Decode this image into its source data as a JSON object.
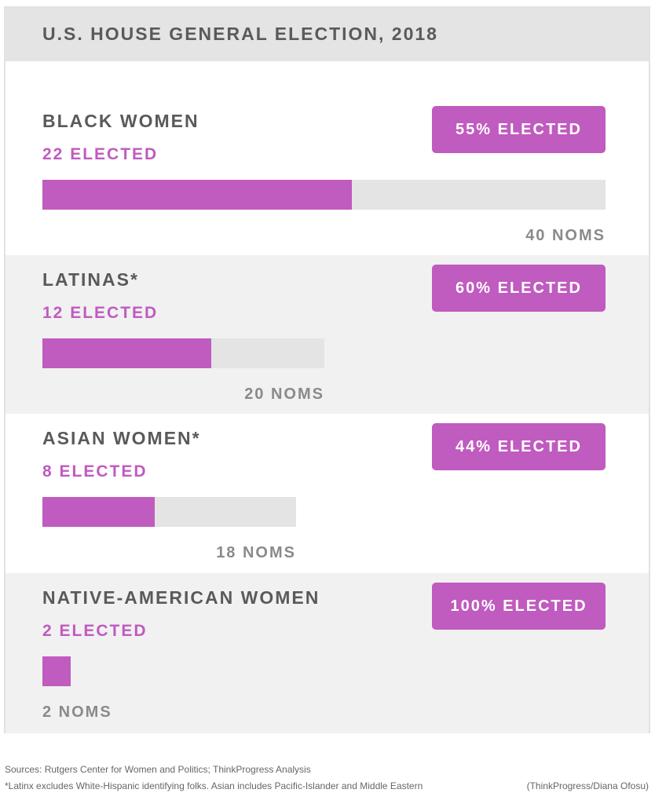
{
  "chart_data": {
    "type": "bar",
    "title": "U.S. HOUSE GENERAL ELECTION, 2018",
    "categories": [
      "BLACK WOMEN",
      "LATINAS*",
      "ASIAN WOMEN*",
      "NATIVE-AMERICAN WOMEN"
    ],
    "series": [
      {
        "name": "ELECTED",
        "values": [
          22,
          12,
          8,
          2
        ]
      },
      {
        "name": "NOMS",
        "values": [
          40,
          20,
          18,
          2
        ]
      }
    ],
    "percent_elected": [
      55,
      60,
      44,
      100
    ],
    "xlim": [
      0,
      40
    ],
    "colors": {
      "elected": "#c05bbf",
      "noms": "#e4e4e4"
    },
    "rows": [
      {
        "group": "BLACK WOMEN",
        "elected": 22,
        "noms": 40,
        "elected_label": "22 ELECTED",
        "noms_label": "40 NOMS",
        "badge": "55% ELECTED"
      },
      {
        "group": "LATINAS*",
        "elected": 12,
        "noms": 20,
        "elected_label": "12 ELECTED",
        "noms_label": "20 NOMS",
        "badge": "60% ELECTED"
      },
      {
        "group": "ASIAN WOMEN*",
        "elected": 8,
        "noms": 18,
        "elected_label": "8 ELECTED",
        "noms_label": "18 NOMS",
        "badge": "44% ELECTED"
      },
      {
        "group": "NATIVE-AMERICAN WOMEN",
        "elected": 2,
        "noms": 2,
        "elected_label": "2 ELECTED",
        "noms_label": "2 NOMS",
        "badge": "100% ELECTED"
      }
    ]
  },
  "footer": {
    "sources": "Sources: Rutgers Center for Women and Politics; ThinkProgress Analysis",
    "note": "*Latinx excludes White-Hispanic identifying folks. Asian includes Pacific-Islander and Middle Eastern",
    "credit": "(ThinkProgress/Diana Ofosu)"
  }
}
